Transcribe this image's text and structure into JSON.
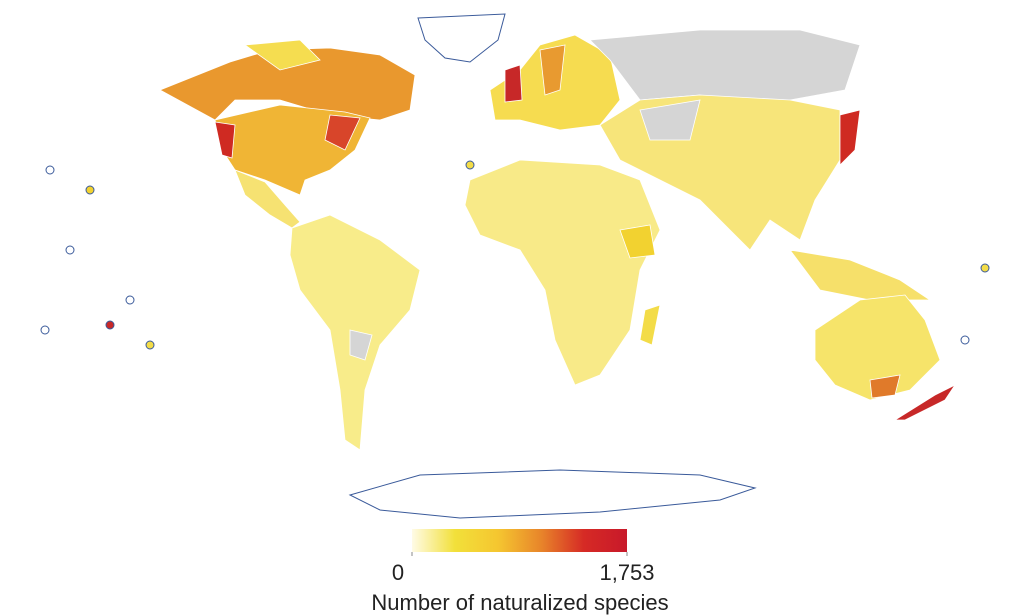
{
  "legend": {
    "title": "Number of naturalized species",
    "ticks": [
      0,
      {
        "value": 1753,
        "label": "1,753"
      }
    ],
    "colors": [
      "#fffbe6",
      "#f2e03a",
      "#f5c630",
      "#e8852a",
      "#d62a25",
      "#c8192a"
    ]
  }
}
